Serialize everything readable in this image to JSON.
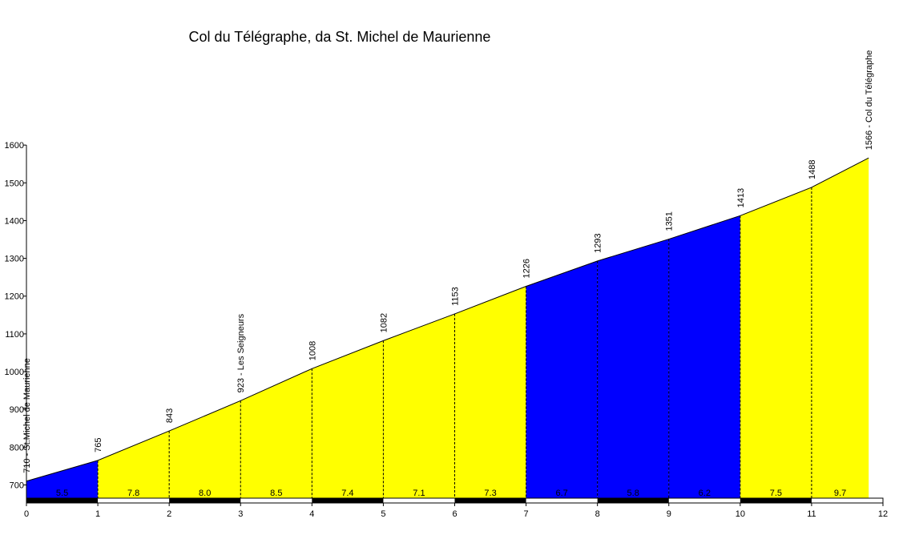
{
  "chart_data": {
    "type": "area",
    "title": "Col du Télégraphe, da St. Michel de Maurienne",
    "xlabel": "",
    "ylabel": "",
    "xlim": [
      0,
      12
    ],
    "ylim": [
      665,
      1600
    ],
    "x_ticks": [
      0,
      1,
      2,
      3,
      4,
      5,
      6,
      7,
      8,
      9,
      10,
      11,
      12
    ],
    "y_ticks": [
      700,
      800,
      900,
      1000,
      1100,
      1200,
      1300,
      1400,
      1500,
      1600
    ],
    "points": [
      {
        "x": 0,
        "y": 710,
        "label": "710 - St.Michel de Maurienne"
      },
      {
        "x": 1,
        "y": 765,
        "label": "765"
      },
      {
        "x": 2,
        "y": 843,
        "label": "843"
      },
      {
        "x": 3,
        "y": 923,
        "label": "923 - Les Seigneurs"
      },
      {
        "x": 4,
        "y": 1008,
        "label": "1008"
      },
      {
        "x": 5,
        "y": 1082,
        "label": "1082"
      },
      {
        "x": 6,
        "y": 1153,
        "label": "1153"
      },
      {
        "x": 7,
        "y": 1226,
        "label": "1226"
      },
      {
        "x": 8,
        "y": 1293,
        "label": "1293"
      },
      {
        "x": 9,
        "y": 1351,
        "label": "1351"
      },
      {
        "x": 10,
        "y": 1413,
        "label": "1413"
      },
      {
        "x": 11,
        "y": 1488,
        "label": "1488"
      },
      {
        "x": 11.8,
        "y": 1566,
        "label": "1566 - Col du Télégraphe"
      }
    ],
    "segments": [
      {
        "from": 0,
        "to": 1,
        "gradient": "5.5",
        "color": "#0000ff"
      },
      {
        "from": 1,
        "to": 2,
        "gradient": "7.8",
        "color": "#ffff00"
      },
      {
        "from": 2,
        "to": 3,
        "gradient": "8.0",
        "color": "#ffff00"
      },
      {
        "from": 3,
        "to": 4,
        "gradient": "8.5",
        "color": "#ffff00"
      },
      {
        "from": 4,
        "to": 5,
        "gradient": "7.4",
        "color": "#ffff00"
      },
      {
        "from": 5,
        "to": 6,
        "gradient": "7.1",
        "color": "#ffff00"
      },
      {
        "from": 6,
        "to": 7,
        "gradient": "7.3",
        "color": "#ffff00"
      },
      {
        "from": 7,
        "to": 8,
        "gradient": "6.7",
        "color": "#0000ff"
      },
      {
        "from": 8,
        "to": 9,
        "gradient": "5.8",
        "color": "#0000ff"
      },
      {
        "from": 9,
        "to": 10,
        "gradient": "6.2",
        "color": "#0000ff"
      },
      {
        "from": 10,
        "to": 11,
        "gradient": "7.5",
        "color": "#ffff00"
      },
      {
        "from": 11,
        "to": 11.8,
        "gradient": "9.7",
        "color": "#ffff00"
      }
    ],
    "grid": false,
    "legend": "none"
  }
}
